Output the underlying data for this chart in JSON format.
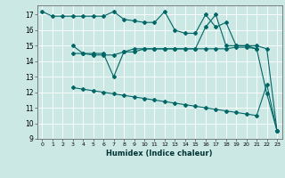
{
  "title": "",
  "xlabel": "Humidex (Indice chaleur)",
  "ylabel": "",
  "background_color": "#cce8e4",
  "grid_color": "#ffffff",
  "line_color": "#006666",
  "xlim": [
    -0.5,
    23.5
  ],
  "ylim": [
    9,
    17.6
  ],
  "yticks": [
    9,
    10,
    11,
    12,
    13,
    14,
    15,
    16,
    17
  ],
  "xticks": [
    0,
    1,
    2,
    3,
    4,
    5,
    6,
    7,
    8,
    9,
    10,
    11,
    12,
    13,
    14,
    15,
    16,
    17,
    18,
    19,
    20,
    21,
    22,
    23
  ],
  "series1_x": [
    0,
    1,
    2,
    3,
    4,
    5,
    6,
    7,
    8,
    9,
    10,
    11,
    12,
    13,
    14,
    15,
    16,
    17,
    18,
    19,
    20,
    21
  ],
  "series1_y": [
    17.2,
    16.9,
    16.9,
    16.9,
    16.9,
    16.9,
    16.9,
    17.2,
    16.7,
    16.6,
    16.5,
    16.5,
    17.2,
    16.0,
    15.8,
    15.8,
    17.0,
    16.2,
    16.5,
    15.0,
    15.0,
    14.8
  ],
  "series2_x": [
    3,
    4,
    5,
    6,
    7,
    8,
    9,
    10,
    11,
    12,
    13,
    14,
    15,
    16,
    17,
    18,
    19,
    20,
    21,
    22,
    23
  ],
  "series2_y": [
    14.5,
    14.5,
    14.5,
    14.5,
    13.0,
    14.6,
    14.6,
    14.8,
    14.8,
    14.8,
    14.8,
    14.8,
    14.8,
    14.8,
    14.8,
    14.8,
    14.9,
    14.9,
    14.8,
    11.9,
    9.5
  ],
  "series3_x": [
    3,
    4,
    5,
    6,
    7,
    8,
    9,
    10,
    11,
    12,
    13,
    14,
    15,
    16,
    17,
    18,
    19,
    20,
    21,
    22,
    23
  ],
  "series3_y": [
    12.3,
    12.2,
    12.1,
    12.0,
    11.9,
    11.8,
    11.7,
    11.6,
    11.5,
    11.4,
    11.3,
    11.2,
    11.1,
    11.0,
    10.9,
    10.8,
    10.7,
    10.6,
    10.5,
    12.5,
    9.5
  ],
  "series4_x": [
    3,
    4,
    5,
    6,
    7,
    8,
    9,
    10,
    11,
    12,
    13,
    14,
    15,
    16,
    17,
    18,
    19,
    20,
    21,
    22,
    23
  ],
  "series4_y": [
    15.0,
    14.5,
    14.4,
    14.4,
    14.4,
    14.6,
    14.8,
    14.8,
    14.8,
    14.8,
    14.8,
    14.8,
    14.8,
    16.2,
    17.0,
    15.0,
    15.0,
    15.0,
    15.0,
    14.8,
    9.5
  ]
}
